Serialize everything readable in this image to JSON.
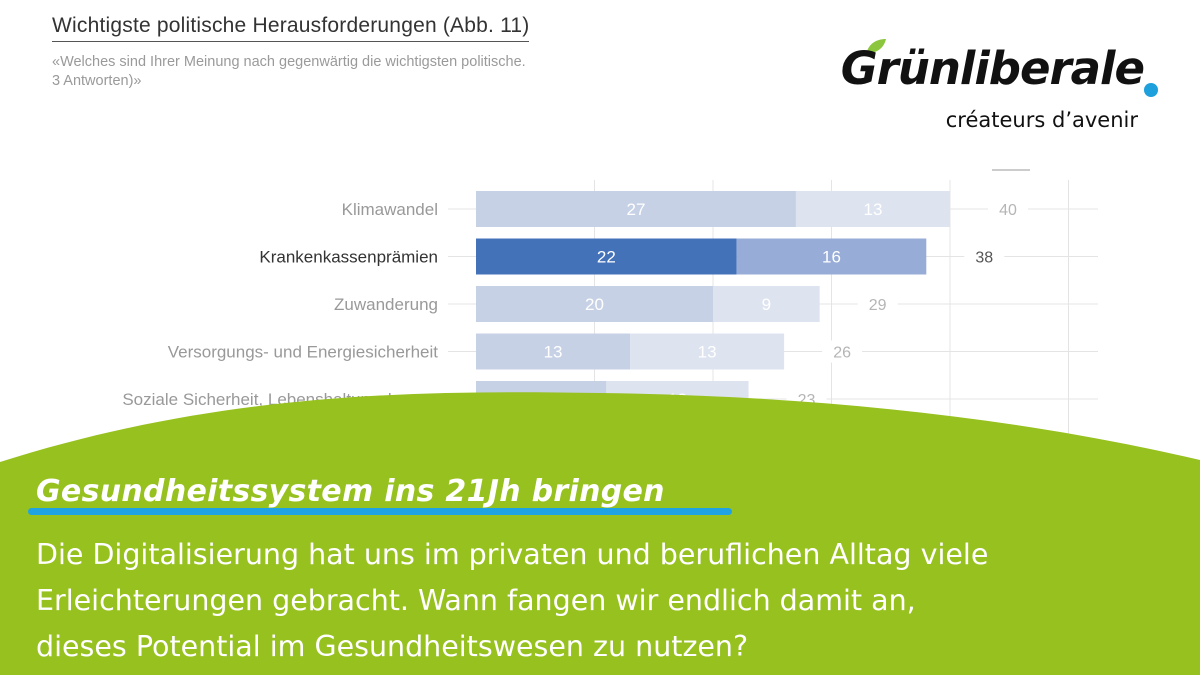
{
  "figure": {
    "title": "Wichtigste politische Herausforderungen  (Abb. 11)",
    "subtitle_line1": "«Welches sind Ihrer Meinung nach gegenwärtig die wichtigsten politische.",
    "subtitle_line2": "3 Antworten)»"
  },
  "logo": {
    "wordmark": "Grünliberale",
    "tagline": "créateurs d’avenir",
    "dot_color": "#1ea0dc",
    "leaf_color": "#8cc63f"
  },
  "chart_data": {
    "type": "bar",
    "orientation": "horizontal",
    "stacked": true,
    "categories": [
      "Klimawandel",
      "Krankenkassenprämien",
      "Zuwanderung",
      "Versorgungs- und Energiesicherheit",
      "Soziale Sicherheit, Lebenshaltungskosten"
    ],
    "series": [
      {
        "values": [
          27,
          22,
          20,
          13,
          11
        ]
      },
      {
        "values": [
          13,
          16,
          9,
          13,
          12
        ]
      }
    ],
    "totals": [
      40,
      38,
      29,
      26,
      23
    ],
    "highlighted_category": "Krankenkassenprämien",
    "colors": {
      "series1": "#c7d1e6",
      "series2": "#dde3ef",
      "series1_highlight": "#4472b9",
      "series2_highlight": "#97acd6",
      "label_muted": "#aab2c8",
      "label_highlight": "#ffffff",
      "category_muted": "#999999",
      "category_highlight": "#333333",
      "grid": "#e4e4e4"
    },
    "xlim": [
      0,
      52
    ],
    "grid": true
  },
  "banner": {
    "headline": "Gesundheitssystem ins 21Jh bringen",
    "body_lines": [
      "Die Digitalisierung hat uns im privaten und beruflichen Alltag viele",
      "Erleichterungen gebracht. Wann fangen wir endlich damit an,",
      "dieses Potential im Gesundheitswesen zu nutzen?"
    ],
    "background_color": "#97c11f",
    "underline_color": "#1fa3e3"
  }
}
